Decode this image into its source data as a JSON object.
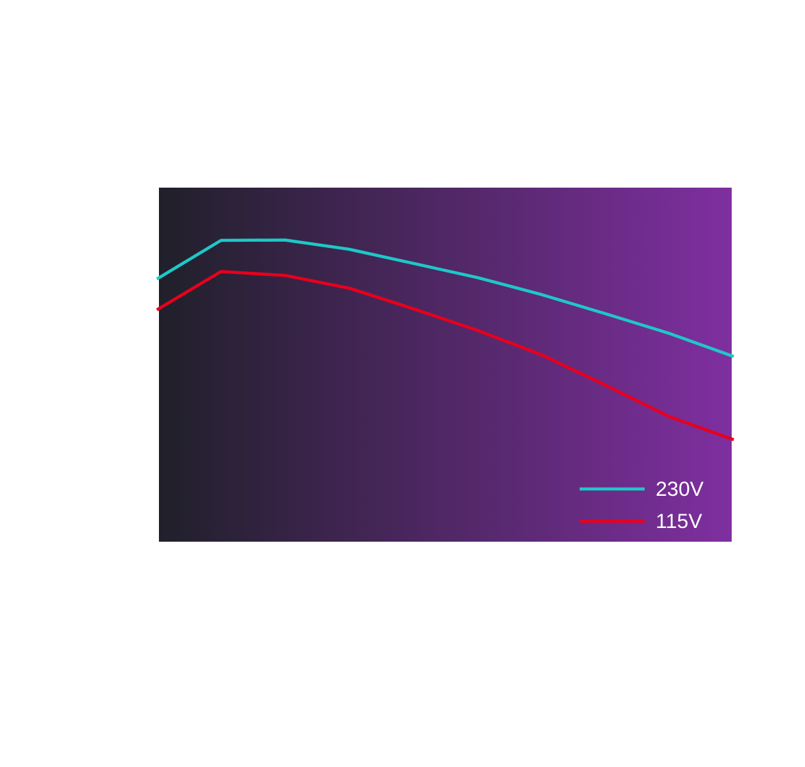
{
  "chart_data": {
    "type": "line",
    "x": [
      1,
      2,
      3,
      4,
      5,
      6,
      7,
      8,
      9,
      10
    ],
    "series": [
      {
        "name": "230V",
        "color": "#1ec8c8",
        "values": [
          74.2,
          85.1,
          85.2,
          82.6,
          78.6,
          74.6,
          69.8,
          64.4,
          58.8,
          52.3
        ]
      },
      {
        "name": "115V",
        "color": "#e8001c",
        "values": [
          65.5,
          76.3,
          75.2,
          71.6,
          65.8,
          59.7,
          52.8,
          44.2,
          35.3,
          28.8
        ]
      }
    ],
    "ylim": [
      0,
      100
    ],
    "grid": false,
    "legend": "bottom-right",
    "background_gradient": [
      "#20202a",
      "#7f2fa0"
    ]
  }
}
